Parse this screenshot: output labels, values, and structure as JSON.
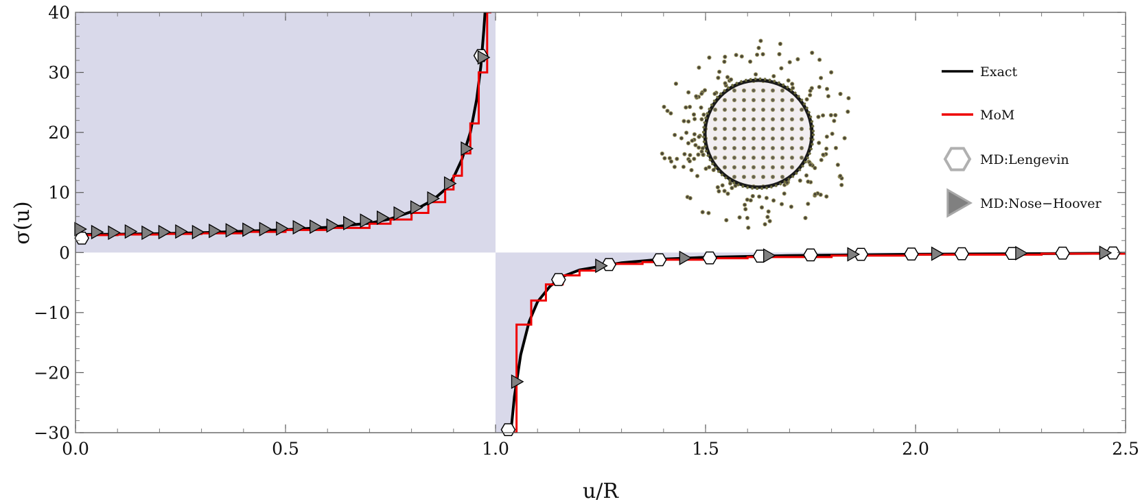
{
  "chart_data": {
    "type": "line",
    "title": "",
    "xlabel": "u/R",
    "ylabel": "σ(u)",
    "xlim": [
      0,
      2.5
    ],
    "ylim": [
      -30,
      40
    ],
    "x_ticks": [
      {
        "value": 0,
        "label": "0.0"
      },
      {
        "value": 0.5,
        "label": "0.5"
      },
      {
        "value": 1.0,
        "label": "1.0"
      },
      {
        "value": 1.5,
        "label": "1.5"
      },
      {
        "value": 2.0,
        "label": "2.0"
      },
      {
        "value": 2.5,
        "label": "2.5"
      }
    ],
    "y_ticks": [
      {
        "value": 40,
        "label": "40"
      },
      {
        "value": 30,
        "label": "30"
      },
      {
        "value": 20,
        "label": "20"
      },
      {
        "value": 10,
        "label": "10"
      },
      {
        "value": 0,
        "label": "0"
      },
      {
        "value": -10,
        "label": "−10"
      },
      {
        "value": -20,
        "label": "−20"
      },
      {
        "value": -30,
        "label": "−30"
      }
    ],
    "grid": false,
    "legend_position": "top-right",
    "shaded_region_color": "#d9d9ea",
    "series": [
      {
        "name": "Exact",
        "kind": "line",
        "color": "#000000",
        "segments": [
          [
            [
              0.0,
              3.0
            ],
            [
              0.1,
              3.05
            ],
            [
              0.2,
              3.15
            ],
            [
              0.3,
              3.3
            ],
            [
              0.4,
              3.55
            ],
            [
              0.5,
              3.8
            ],
            [
              0.6,
              4.2
            ],
            [
              0.7,
              4.9
            ],
            [
              0.75,
              5.6
            ],
            [
              0.8,
              6.8
            ],
            [
              0.85,
              8.7
            ],
            [
              0.88,
              10.5
            ],
            [
              0.9,
              12.5
            ],
            [
              0.92,
              15.5
            ],
            [
              0.94,
              20.0
            ],
            [
              0.955,
              25.5
            ],
            [
              0.965,
              31.0
            ],
            [
              0.972,
              37.0
            ],
            [
              0.976,
              41.0
            ]
          ],
          [
            [
              1.035,
              -31.0
            ],
            [
              1.045,
              -24.0
            ],
            [
              1.06,
              -17.0
            ],
            [
              1.08,
              -11.5
            ],
            [
              1.1,
              -8.2
            ],
            [
              1.13,
              -5.6
            ],
            [
              1.16,
              -4.0
            ],
            [
              1.2,
              -2.9
            ],
            [
              1.3,
              -1.7
            ],
            [
              1.4,
              -1.1
            ],
            [
              1.5,
              -0.8
            ],
            [
              1.7,
              -0.5
            ],
            [
              2.0,
              -0.3
            ],
            [
              2.3,
              -0.18
            ],
            [
              2.5,
              -0.12
            ]
          ]
        ]
      },
      {
        "name": "MoM",
        "kind": "step",
        "color": "#ee0000",
        "steps_left": [
          [
            0.0,
            2.9
          ],
          [
            0.1,
            3.0
          ],
          [
            0.2,
            3.1
          ],
          [
            0.3,
            3.2
          ],
          [
            0.4,
            3.45
          ],
          [
            0.5,
            3.75
          ],
          [
            0.6,
            4.1
          ],
          [
            0.7,
            4.8
          ],
          [
            0.75,
            5.5
          ],
          [
            0.8,
            6.6
          ],
          [
            0.84,
            8.4
          ],
          [
            0.88,
            10.5
          ],
          [
            0.9,
            12.8
          ],
          [
            0.92,
            16.5
          ],
          [
            0.94,
            21.5
          ],
          [
            0.96,
            30.0
          ],
          [
            0.98,
            40.0
          ],
          [
            0.9899,
            40.0
          ]
        ],
        "steps_right": [
          [
            1.035,
            -30.0
          ],
          [
            1.05,
            -12.0
          ],
          [
            1.085,
            -8.0
          ],
          [
            1.12,
            -5.3
          ],
          [
            1.16,
            -3.8
          ],
          [
            1.2,
            -3.0
          ],
          [
            1.24,
            -2.3
          ],
          [
            1.28,
            -1.9
          ],
          [
            1.35,
            -1.6
          ],
          [
            1.4,
            -1.2
          ],
          [
            1.5,
            -0.95
          ],
          [
            1.6,
            -0.75
          ],
          [
            1.8,
            -0.5
          ],
          [
            2.0,
            -0.35
          ],
          [
            2.3,
            -0.2
          ],
          [
            2.5,
            -0.12
          ]
        ]
      },
      {
        "name": "MD:Lengevin",
        "kind": "hexagon-marker",
        "color": "#ffffff",
        "stroke": "#000000",
        "points": [
          [
            0.015,
            2.4
          ],
          [
            0.965,
            32.8
          ],
          [
            1.03,
            -29.5
          ],
          [
            1.15,
            -4.5
          ],
          [
            1.27,
            -2.0
          ],
          [
            1.39,
            -1.2
          ],
          [
            1.51,
            -0.9
          ],
          [
            1.63,
            -0.6
          ],
          [
            1.75,
            -0.4
          ],
          [
            1.87,
            -0.3
          ],
          [
            1.99,
            -0.25
          ],
          [
            2.11,
            -0.2
          ],
          [
            2.23,
            -0.15
          ],
          [
            2.35,
            -0.1
          ],
          [
            2.47,
            -0.08
          ]
        ]
      },
      {
        "name": "MD:Nose−Hoover",
        "kind": "triangle-marker",
        "color": "#808080",
        "stroke": "#000000",
        "points": [
          [
            0.01,
            3.9
          ],
          [
            0.05,
            3.4
          ],
          [
            0.09,
            3.3
          ],
          [
            0.13,
            3.5
          ],
          [
            0.17,
            3.3
          ],
          [
            0.21,
            3.4
          ],
          [
            0.25,
            3.5
          ],
          [
            0.29,
            3.4
          ],
          [
            0.33,
            3.6
          ],
          [
            0.37,
            3.7
          ],
          [
            0.41,
            3.8
          ],
          [
            0.45,
            3.9
          ],
          [
            0.49,
            4.0
          ],
          [
            0.53,
            4.2
          ],
          [
            0.57,
            4.3
          ],
          [
            0.61,
            4.5
          ],
          [
            0.65,
            4.9
          ],
          [
            0.69,
            5.3
          ],
          [
            0.73,
            5.8
          ],
          [
            0.77,
            6.5
          ],
          [
            0.81,
            7.5
          ],
          [
            0.85,
            9.0
          ],
          [
            0.89,
            11.5
          ],
          [
            0.93,
            17.3
          ],
          [
            0.97,
            32.5
          ],
          [
            1.05,
            -21.5
          ],
          [
            1.25,
            -2.2
          ],
          [
            1.45,
            -0.9
          ],
          [
            1.65,
            -0.5
          ],
          [
            1.85,
            -0.3
          ],
          [
            2.05,
            -0.2
          ],
          [
            2.25,
            -0.1
          ],
          [
            2.45,
            -0.05
          ]
        ]
      }
    ]
  }
}
